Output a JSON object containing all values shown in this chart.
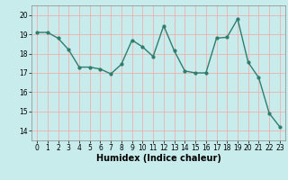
{
  "x": [
    0,
    1,
    2,
    3,
    4,
    5,
    6,
    7,
    8,
    9,
    10,
    11,
    12,
    13,
    14,
    15,
    16,
    17,
    18,
    19,
    20,
    21,
    22,
    23
  ],
  "y": [
    19.1,
    19.1,
    18.8,
    18.2,
    17.3,
    17.3,
    17.2,
    16.95,
    17.45,
    18.7,
    18.35,
    17.85,
    19.45,
    18.15,
    17.1,
    17.0,
    17.0,
    18.8,
    18.85,
    19.8,
    17.55,
    16.75,
    14.9,
    14.2
  ],
  "line_color": "#2e7d6e",
  "marker": "o",
  "markersize": 2.0,
  "linewidth": 1.0,
  "bg_color": "#c8ecec",
  "grid_color": "#e8b8b8",
  "xlabel": "Humidex (Indice chaleur)",
  "xlabel_fontsize": 7,
  "xlim": [
    -0.5,
    23.5
  ],
  "ylim": [
    13.5,
    20.5
  ],
  "yticks": [
    14,
    15,
    16,
    17,
    18,
    19,
    20
  ],
  "xticks": [
    0,
    1,
    2,
    3,
    4,
    5,
    6,
    7,
    8,
    9,
    10,
    11,
    12,
    13,
    14,
    15,
    16,
    17,
    18,
    19,
    20,
    21,
    22,
    23
  ],
  "tick_fontsize": 5.5
}
